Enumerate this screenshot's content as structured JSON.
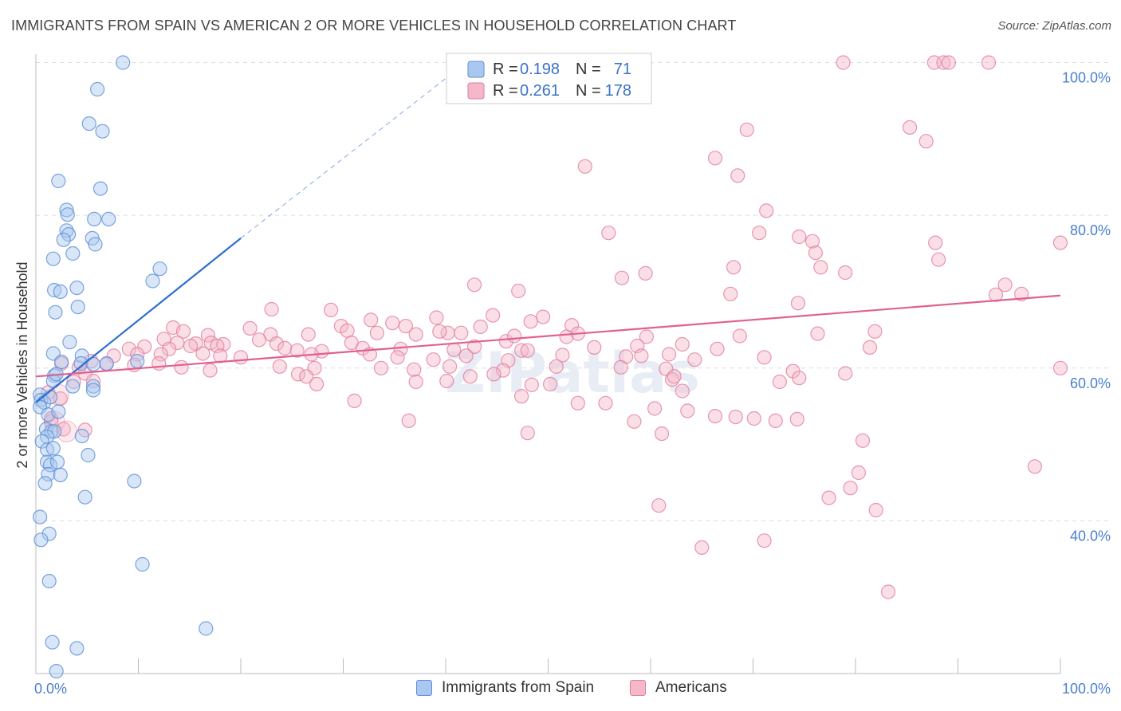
{
  "title": "IMMIGRANTS FROM SPAIN VS AMERICAN 2 OR MORE VEHICLES IN HOUSEHOLD CORRELATION CHART",
  "source": "Source: ZipAtlas.com",
  "colors": {
    "blue_fill": "#a9c8f0",
    "blue_stroke": "#5b8fd6",
    "blue_line": "#2c6fd1",
    "pink_fill": "#f5b8c9",
    "pink_stroke": "#e27d9e",
    "pink_line": "#e06090",
    "tick_color": "#4a7fd0",
    "grid": "#dddddd"
  },
  "chart_data": {
    "type": "scatter",
    "ylabel": "2 or more Vehicles in Household",
    "x_ticks": [
      "0.0%",
      "100.0%"
    ],
    "y_ticks": [
      "40.0%",
      "60.0%",
      "80.0%",
      "100.0%"
    ],
    "xlim": [
      0,
      100
    ],
    "ylim": [
      20,
      102
    ],
    "grid": true,
    "watermark": "ZIPatlas",
    "legend": {
      "position": "top-center",
      "entries": [
        {
          "r_label": "R =",
          "r_value": "0.198",
          "n_label": "N =",
          "n_value": "71"
        },
        {
          "r_label": "R =",
          "r_value": "0.261",
          "n_label": "N =",
          "n_value": "178"
        }
      ]
    },
    "series": [
      {
        "name": "Immigrants from Spain",
        "color": "blue",
        "trend": {
          "x0": 0,
          "y0": 55.5,
          "x1": 20,
          "y1": 77,
          "dashed_to": [
            42,
            100
          ]
        },
        "points": [
          [
            8.5,
            100
          ],
          [
            6,
            96.5
          ],
          [
            5.2,
            92
          ],
          [
            6.5,
            91
          ],
          [
            2.2,
            84.5
          ],
          [
            6.3,
            83.5
          ],
          [
            3,
            80.7
          ],
          [
            3.1,
            80.1
          ],
          [
            5.7,
            79.5
          ],
          [
            7.1,
            79.5
          ],
          [
            3,
            78
          ],
          [
            3.2,
            77.5
          ],
          [
            2.7,
            76.8
          ],
          [
            5.5,
            77
          ],
          [
            5.8,
            76.2
          ],
          [
            3.6,
            75
          ],
          [
            1.7,
            74.3
          ],
          [
            12.1,
            73
          ],
          [
            11.4,
            71.4
          ],
          [
            1.8,
            70.2
          ],
          [
            2.4,
            70
          ],
          [
            4,
            70.5
          ],
          [
            1.9,
            67.3
          ],
          [
            4.1,
            68
          ],
          [
            3.3,
            63.4
          ],
          [
            1.7,
            61.9
          ],
          [
            2.5,
            60.8
          ],
          [
            4.5,
            61.6
          ],
          [
            4.4,
            60.6
          ],
          [
            9.9,
            60.9
          ],
          [
            5.6,
            60.5
          ],
          [
            6.9,
            60.6
          ],
          [
            1.8,
            59
          ],
          [
            1.7,
            58.3
          ],
          [
            2,
            59.2
          ],
          [
            3.6,
            57.6
          ],
          [
            5.6,
            57.6
          ],
          [
            5.6,
            57.1
          ],
          [
            0.4,
            56.5
          ],
          [
            0.5,
            55.8
          ],
          [
            0.8,
            55.5
          ],
          [
            0.4,
            54.9
          ],
          [
            1.4,
            56.2
          ],
          [
            1.2,
            53.9
          ],
          [
            2.2,
            54.3
          ],
          [
            1,
            52
          ],
          [
            1.5,
            51.7
          ],
          [
            1.8,
            51.7
          ],
          [
            1.1,
            51
          ],
          [
            4.5,
            51.1
          ],
          [
            0.6,
            50.4
          ],
          [
            1.1,
            49.3
          ],
          [
            1.7,
            49.5
          ],
          [
            5.1,
            48.6
          ],
          [
            1.1,
            47.7
          ],
          [
            1.4,
            47.3
          ],
          [
            2.1,
            47.7
          ],
          [
            1.2,
            46.1
          ],
          [
            2.4,
            46
          ],
          [
            9.6,
            45.2
          ],
          [
            0.9,
            44.9
          ],
          [
            4.8,
            43.1
          ],
          [
            0.4,
            40.5
          ],
          [
            1.3,
            38.3
          ],
          [
            0.5,
            37.5
          ],
          [
            10.4,
            34.3
          ],
          [
            1.3,
            32.1
          ],
          [
            16.6,
            25.9
          ],
          [
            1.6,
            24.1
          ],
          [
            4,
            23.3
          ],
          [
            2,
            20.3
          ]
        ]
      },
      {
        "name": "Americans",
        "color": "pink",
        "trend": {
          "x0": 0,
          "y0": 58.9,
          "x1": 100,
          "y1": 69.5
        },
        "points": [
          [
            78.8,
            100
          ],
          [
            87.7,
            100
          ],
          [
            88.6,
            100
          ],
          [
            89.1,
            100
          ],
          [
            93,
            100
          ],
          [
            69.4,
            91.2
          ],
          [
            85.3,
            91.5
          ],
          [
            86.9,
            89.7
          ],
          [
            66.3,
            87.5
          ],
          [
            53.6,
            86.4
          ],
          [
            68.5,
            85.2
          ],
          [
            71.3,
            80.6
          ],
          [
            55.9,
            77.7
          ],
          [
            70.6,
            77.7
          ],
          [
            74.5,
            77.2
          ],
          [
            75.8,
            76.6
          ],
          [
            87.8,
            76.4
          ],
          [
            100,
            76.4
          ],
          [
            76.1,
            75.1
          ],
          [
            76.6,
            73.2
          ],
          [
            68.1,
            73.2
          ],
          [
            59.5,
            72.4
          ],
          [
            57.2,
            71.8
          ],
          [
            79,
            72.5
          ],
          [
            88.1,
            74.2
          ],
          [
            42.8,
            70.9
          ],
          [
            47.1,
            70.1
          ],
          [
            94.6,
            70.9
          ],
          [
            93.7,
            69.6
          ],
          [
            96.2,
            69.7
          ],
          [
            67.8,
            69.7
          ],
          [
            74.4,
            68.5
          ],
          [
            23,
            67.7
          ],
          [
            28.8,
            67.6
          ],
          [
            32.7,
            66.3
          ],
          [
            39.1,
            66.6
          ],
          [
            44.6,
            66.9
          ],
          [
            49.5,
            66.7
          ],
          [
            29.8,
            65.5
          ],
          [
            34.8,
            65.9
          ],
          [
            36.1,
            65.5
          ],
          [
            30.4,
            64.9
          ],
          [
            33.3,
            64.6
          ],
          [
            40.2,
            64.6
          ],
          [
            41.5,
            64.6
          ],
          [
            43.4,
            65.4
          ],
          [
            48.3,
            66.1
          ],
          [
            51.8,
            64.1
          ],
          [
            52.3,
            65.6
          ],
          [
            59.6,
            64.1
          ],
          [
            68.7,
            64.2
          ],
          [
            76.3,
            64.5
          ],
          [
            81.9,
            64.8
          ],
          [
            13.4,
            65.3
          ],
          [
            14.4,
            64.8
          ],
          [
            16.8,
            64.3
          ],
          [
            20.9,
            65.2
          ],
          [
            22.9,
            64.4
          ],
          [
            26.6,
            64.4
          ],
          [
            12.5,
            63.8
          ],
          [
            13.8,
            63.3
          ],
          [
            15.6,
            63.2
          ],
          [
            17.1,
            63.3
          ],
          [
            18.3,
            63.1
          ],
          [
            21.8,
            63.7
          ],
          [
            23.5,
            63.2
          ],
          [
            30.8,
            63.3
          ],
          [
            37.1,
            64.4
          ],
          [
            39.4,
            64.8
          ],
          [
            45.9,
            63.5
          ],
          [
            46.7,
            64.2
          ],
          [
            52.9,
            64.5
          ],
          [
            63.1,
            63.1
          ],
          [
            9.1,
            62.5
          ],
          [
            10.6,
            62.8
          ],
          [
            13,
            62.5
          ],
          [
            15.1,
            62.9
          ],
          [
            17.7,
            62.9
          ],
          [
            24.3,
            62.6
          ],
          [
            25.5,
            62.3
          ],
          [
            27.9,
            62.2
          ],
          [
            31.9,
            62.6
          ],
          [
            35.6,
            62.5
          ],
          [
            40.8,
            62.4
          ],
          [
            42.8,
            62.8
          ],
          [
            47.4,
            62.3
          ],
          [
            48,
            62.3
          ],
          [
            51.4,
            61.7
          ],
          [
            54.5,
            62.7
          ],
          [
            58.7,
            62.9
          ],
          [
            61.8,
            61.8
          ],
          [
            66.5,
            62.5
          ],
          [
            81.4,
            62.7
          ],
          [
            100,
            60
          ],
          [
            7.6,
            61.6
          ],
          [
            9.9,
            61.8
          ],
          [
            12.2,
            61.8
          ],
          [
            16.3,
            61.9
          ],
          [
            18,
            61.6
          ],
          [
            20,
            61.4
          ],
          [
            26.9,
            61.8
          ],
          [
            32.6,
            61.8
          ],
          [
            35.3,
            61.4
          ],
          [
            38.8,
            61.1
          ],
          [
            42,
            61.6
          ],
          [
            46.1,
            61
          ],
          [
            57.6,
            61.5
          ],
          [
            59.1,
            61.6
          ],
          [
            64.3,
            61.1
          ],
          [
            71.1,
            61.4
          ],
          [
            2.5,
            60.6
          ],
          [
            4.2,
            60.1
          ],
          [
            5.4,
            60.9
          ],
          [
            6.9,
            60.5
          ],
          [
            9.6,
            60.4
          ],
          [
            12,
            60.6
          ],
          [
            14.2,
            60.1
          ],
          [
            17,
            59.7
          ],
          [
            23.8,
            60.2
          ],
          [
            27.2,
            60
          ],
          [
            33.7,
            60
          ],
          [
            36.9,
            59.8
          ],
          [
            40.4,
            60.2
          ],
          [
            45.6,
            59.7
          ],
          [
            50.8,
            60.2
          ],
          [
            57.1,
            60.1
          ],
          [
            61.5,
            59.9
          ],
          [
            73.9,
            59.6
          ],
          [
            79,
            59.3
          ],
          [
            4.8,
            59.3
          ],
          [
            25.6,
            59.2
          ],
          [
            26.4,
            58.9
          ],
          [
            42.4,
            58.9
          ],
          [
            44.7,
            59.2
          ],
          [
            62.1,
            58.5
          ],
          [
            62.3,
            58.9
          ],
          [
            72.6,
            58.2
          ],
          [
            74.5,
            58.7
          ],
          [
            3.7,
            58.2
          ],
          [
            5.6,
            58.3
          ],
          [
            27.4,
            57.9
          ],
          [
            37.1,
            58.2
          ],
          [
            40.1,
            58.3
          ],
          [
            48.4,
            57.8
          ],
          [
            50.2,
            57.9
          ],
          [
            63.1,
            57
          ],
          [
            1.2,
            56.8
          ],
          [
            2.4,
            56
          ],
          [
            31.1,
            55.7
          ],
          [
            47.4,
            56.3
          ],
          [
            52.9,
            55.4
          ],
          [
            55.6,
            55.4
          ],
          [
            60.4,
            54.7
          ],
          [
            63.6,
            54.4
          ],
          [
            66.3,
            53.7
          ],
          [
            68.3,
            53.6
          ],
          [
            70.1,
            53.4
          ],
          [
            72.2,
            53.1
          ],
          [
            74.3,
            53.3
          ],
          [
            1.5,
            53.4
          ],
          [
            36.4,
            53.1
          ],
          [
            58.4,
            53
          ],
          [
            61.1,
            51.4
          ],
          [
            48,
            51.5
          ],
          [
            2.7,
            52
          ],
          [
            80.7,
            50.5
          ],
          [
            97.5,
            47.1
          ],
          [
            80.3,
            46.3
          ],
          [
            79.5,
            44.3
          ],
          [
            77.4,
            43
          ],
          [
            60.8,
            42
          ],
          [
            82,
            41.4
          ],
          [
            71.1,
            37.4
          ],
          [
            65,
            36.5
          ],
          [
            83.2,
            30.7
          ],
          [
            1.5,
            53
          ],
          [
            4.8,
            51.9
          ]
        ]
      }
    ]
  },
  "legend_bottom": [
    "Immigrants from Spain",
    "Americans"
  ]
}
